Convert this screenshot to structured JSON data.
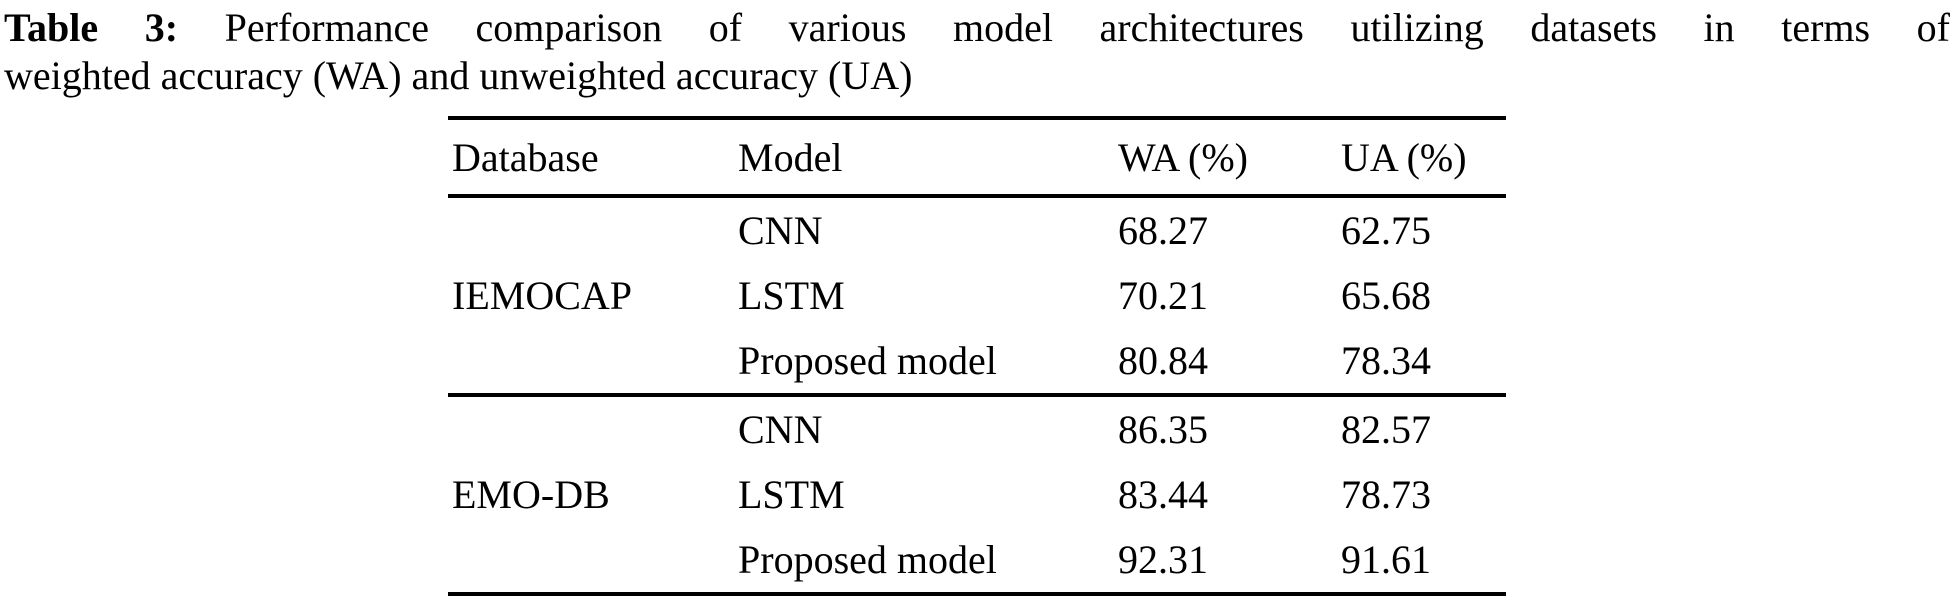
{
  "caption": {
    "label": "Table 3:",
    "line1_rest": "Performance comparison of various model architectures utilizing datasets in terms of",
    "line2": "weighted accuracy (WA) and unweighted accuracy (UA)"
  },
  "table": {
    "headers": [
      "Database",
      "Model",
      "WA (%)",
      "UA (%)"
    ],
    "groups": [
      {
        "database": "IEMOCAP",
        "rows": [
          {
            "model": "CNN",
            "wa": "68.27",
            "ua": "62.75",
            "bold": false
          },
          {
            "model": "LSTM",
            "wa": "70.21",
            "ua": "65.68",
            "bold": false
          },
          {
            "model": "Proposed model",
            "wa": "80.84",
            "ua": "78.34",
            "bold": true
          }
        ]
      },
      {
        "database": "EMO-DB",
        "rows": [
          {
            "model": "CNN",
            "wa": "86.35",
            "ua": "82.57",
            "bold": false
          },
          {
            "model": "LSTM",
            "wa": "83.44",
            "ua": "78.73",
            "bold": false
          },
          {
            "model": "Proposed model",
            "wa": "92.31",
            "ua": "91.61",
            "bold": true
          }
        ]
      }
    ]
  },
  "colors": {
    "background": "#ffffff",
    "text": "#000000",
    "rule": "#000000"
  }
}
